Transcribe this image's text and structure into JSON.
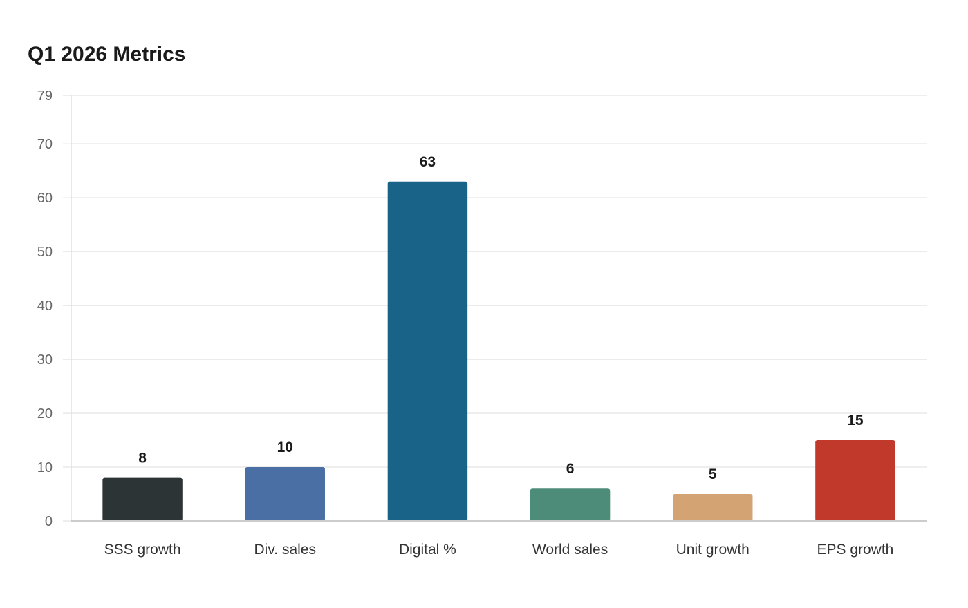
{
  "chart_data": {
    "type": "bar",
    "title": "Q1 2026 Metrics",
    "xlabel": "",
    "ylabel": "",
    "categories": [
      "SSS growth",
      "Div. sales",
      "Digital %",
      "World sales",
      "Unit growth",
      "EPS growth"
    ],
    "values": [
      8,
      10,
      63,
      6,
      5,
      15
    ],
    "colors": [
      "#2d3436",
      "#4a6fa5",
      "#196388",
      "#4e8c7a",
      "#d4a373",
      "#c0392b"
    ],
    "ylim": [
      0,
      79
    ],
    "yticks": [
      0,
      10,
      20,
      30,
      40,
      50,
      60,
      70,
      79
    ],
    "grid": true,
    "legend": "none"
  }
}
